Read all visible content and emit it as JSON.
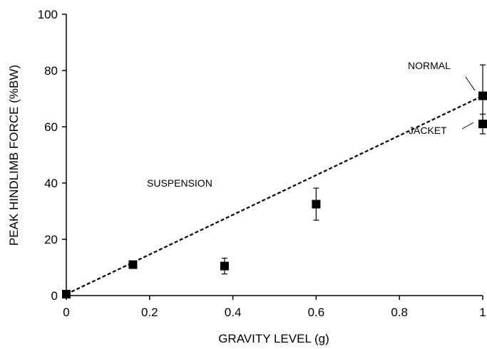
{
  "chart_data": {
    "type": "scatter",
    "title": "",
    "xlabel": "GRAVITY LEVEL (g)",
    "ylabel": "PEAK HINDLIMB FORCE (%BW)",
    "xlim": [
      0,
      1
    ],
    "ylim": [
      0,
      100
    ],
    "x_ticks": [
      "0",
      "0.2",
      "0.4",
      "0.6",
      "0.8",
      "1"
    ],
    "y_ticks": [
      "0",
      "20",
      "40",
      "60",
      "80",
      "100"
    ],
    "grid": false,
    "legend": "none",
    "marker_color": "#000000",
    "series": [
      {
        "points": [
          {
            "x": 0,
            "y": 0.5,
            "err": 0
          },
          {
            "x": 0.16,
            "y": 11,
            "err": 0.8
          },
          {
            "x": 0.38,
            "y": 10.5,
            "err": 2.8
          },
          {
            "x": 0.6,
            "y": 32.5,
            "err": 5.7
          },
          {
            "x": 1.0,
            "y": 71,
            "err": 11
          },
          {
            "x": 1.0,
            "y": 61,
            "err": 3.5
          }
        ]
      }
    ],
    "trendline": {
      "style": "dashed",
      "color": "#000000",
      "from": {
        "x": 0,
        "y": 0.5
      },
      "to": {
        "x": 1.0,
        "y": 71
      }
    },
    "annotations": [
      {
        "id": "suspension",
        "text": "SUSPENSION"
      },
      {
        "id": "normal",
        "text": "NORMAL"
      },
      {
        "id": "jacket",
        "text": "JACKET"
      }
    ]
  }
}
